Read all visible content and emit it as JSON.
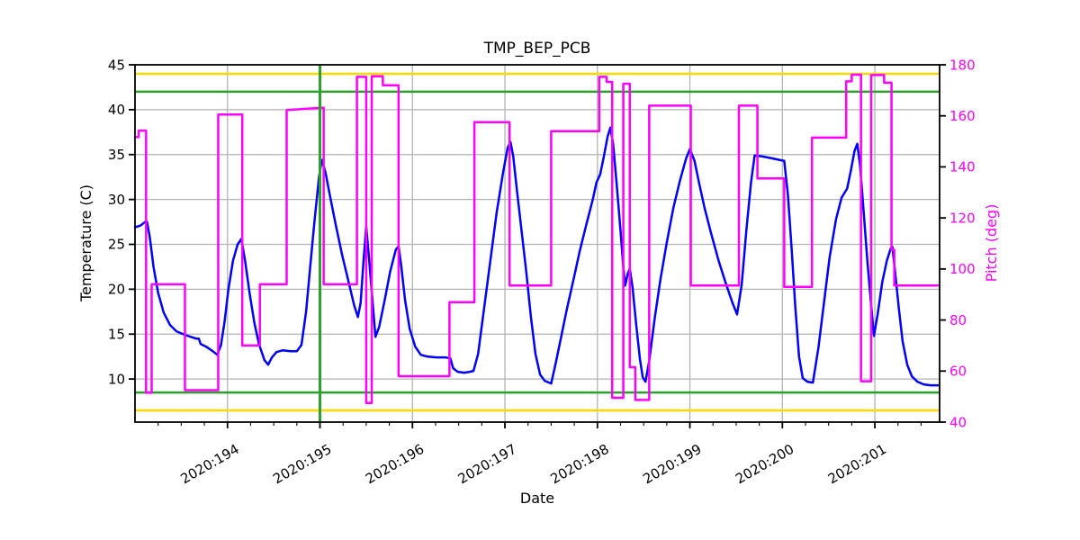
{
  "figure": {
    "background": "#ffffff"
  },
  "chart_data": {
    "type": "line",
    "title": "TMP_BEP_PCB",
    "xlabel": "Date",
    "x_axis": {
      "range": [
        193.0,
        201.7
      ],
      "tick_values": [
        194,
        195,
        196,
        197,
        198,
        199,
        200,
        201
      ],
      "tick_labels": [
        "2020:194",
        "2020:195",
        "2020:196",
        "2020:197",
        "2020:198",
        "2020:199",
        "2020:200",
        "2020:201"
      ],
      "minor_tick_step": 0.25,
      "tick_label_rotation_deg": -30,
      "tick_color": "#000000"
    },
    "left_axis": {
      "label": "Temperature (C)",
      "range": [
        5.2,
        45
      ],
      "ticks": [
        45,
        40,
        35,
        30,
        25,
        20,
        15,
        10
      ],
      "color": "#000000"
    },
    "right_axis": {
      "label": "Pitch (deg)",
      "range": [
        40,
        180
      ],
      "ticks": [
        180,
        160,
        140,
        120,
        100,
        80,
        60,
        40
      ],
      "color": "#ff00ff"
    },
    "grid": {
      "on": true,
      "color": "#b3b3b3"
    },
    "legend": {
      "shown": false
    },
    "limit_lines": [
      {
        "name": "yellow-high-limit",
        "axis": "left",
        "value": 44,
        "color": "#ffd700",
        "width": 2.5
      },
      {
        "name": "green-high-limit",
        "axis": "left",
        "value": 42,
        "color": "#2ca02c",
        "width": 2.5
      },
      {
        "name": "green-low-limit",
        "axis": "left",
        "value": 8.5,
        "color": "#2ca02c",
        "width": 2.5
      },
      {
        "name": "yellow-low-limit",
        "axis": "left",
        "value": 6.5,
        "color": "#ffd700",
        "width": 2.5
      }
    ],
    "vlines": [
      {
        "name": "green-vline",
        "x": 195.0,
        "color": "#2ca02c",
        "width": 3
      }
    ],
    "series": [
      {
        "name": "temperature",
        "axis": "left",
        "color": "#0000ff",
        "width": 2.5,
        "points": [
          [
            193.0,
            26.9
          ],
          [
            193.06,
            27.1
          ],
          [
            193.11,
            27.5
          ],
          [
            193.13,
            27.5
          ],
          [
            193.16,
            25.8
          ],
          [
            193.2,
            22.5
          ],
          [
            193.25,
            19.6
          ],
          [
            193.31,
            17.4
          ],
          [
            193.38,
            16.0
          ],
          [
            193.45,
            15.3
          ],
          [
            193.52,
            15.0
          ],
          [
            193.6,
            14.7
          ],
          [
            193.66,
            14.5
          ],
          [
            193.69,
            14.5
          ],
          [
            193.71,
            13.9
          ],
          [
            193.77,
            13.6
          ],
          [
            193.84,
            13.1
          ],
          [
            193.89,
            12.7
          ],
          [
            193.93,
            13.8
          ],
          [
            193.97,
            16.5
          ],
          [
            194.01,
            20.0
          ],
          [
            194.06,
            23.2
          ],
          [
            194.11,
            25.0
          ],
          [
            194.15,
            25.6
          ],
          [
            194.19,
            23.2
          ],
          [
            194.24,
            19.5
          ],
          [
            194.29,
            16.3
          ],
          [
            194.34,
            13.9
          ],
          [
            194.4,
            12.1
          ],
          [
            194.44,
            11.6
          ],
          [
            194.48,
            12.4
          ],
          [
            194.53,
            13.0
          ],
          [
            194.6,
            13.2
          ],
          [
            194.68,
            13.1
          ],
          [
            194.75,
            13.1
          ],
          [
            194.8,
            13.8
          ],
          [
            194.85,
            17.5
          ],
          [
            194.89,
            22.0
          ],
          [
            194.94,
            27.5
          ],
          [
            194.99,
            32.5
          ],
          [
            195.02,
            34.4
          ],
          [
            195.06,
            33.0
          ],
          [
            195.11,
            30.3
          ],
          [
            195.17,
            27.2
          ],
          [
            195.24,
            23.8
          ],
          [
            195.31,
            20.8
          ],
          [
            195.37,
            18.2
          ],
          [
            195.41,
            16.9
          ],
          [
            195.44,
            18.5
          ],
          [
            195.47,
            23.0
          ],
          [
            195.5,
            27.0
          ],
          [
            195.53,
            23.5
          ],
          [
            195.57,
            18.5
          ],
          [
            195.6,
            14.7
          ],
          [
            195.64,
            15.8
          ],
          [
            195.7,
            18.8
          ],
          [
            195.76,
            22.0
          ],
          [
            195.82,
            24.4
          ],
          [
            195.85,
            24.8
          ],
          [
            195.88,
            22.5
          ],
          [
            195.92,
            18.8
          ],
          [
            195.97,
            15.6
          ],
          [
            196.03,
            13.6
          ],
          [
            196.09,
            12.7
          ],
          [
            196.16,
            12.5
          ],
          [
            196.26,
            12.4
          ],
          [
            196.36,
            12.4
          ],
          [
            196.41,
            12.3
          ],
          [
            196.44,
            11.2
          ],
          [
            196.49,
            10.8
          ],
          [
            196.56,
            10.7
          ],
          [
            196.62,
            10.8
          ],
          [
            196.66,
            10.9
          ],
          [
            196.71,
            12.8
          ],
          [
            196.77,
            17.5
          ],
          [
            196.84,
            23.0
          ],
          [
            196.91,
            28.5
          ],
          [
            196.98,
            33.0
          ],
          [
            197.03,
            35.8
          ],
          [
            197.06,
            36.4
          ],
          [
            197.09,
            34.8
          ],
          [
            197.13,
            31.0
          ],
          [
            197.18,
            26.5
          ],
          [
            197.23,
            22.0
          ],
          [
            197.28,
            17.0
          ],
          [
            197.33,
            12.8
          ],
          [
            197.38,
            10.5
          ],
          [
            197.43,
            9.8
          ],
          [
            197.5,
            9.5
          ],
          [
            197.55,
            11.8
          ],
          [
            197.61,
            14.8
          ],
          [
            197.67,
            17.8
          ],
          [
            197.74,
            21.0
          ],
          [
            197.81,
            24.3
          ],
          [
            197.88,
            27.2
          ],
          [
            197.95,
            30.0
          ],
          [
            197.99,
            31.9
          ],
          [
            198.03,
            32.8
          ],
          [
            198.07,
            34.8
          ],
          [
            198.11,
            37.0
          ],
          [
            198.14,
            38.0
          ],
          [
            198.17,
            36.2
          ],
          [
            198.21,
            31.5
          ],
          [
            198.25,
            26.5
          ],
          [
            198.28,
            22.5
          ],
          [
            198.3,
            20.4
          ],
          [
            198.33,
            21.8
          ],
          [
            198.35,
            22.3
          ],
          [
            198.38,
            20.2
          ],
          [
            198.42,
            16.0
          ],
          [
            198.46,
            12.2
          ],
          [
            198.49,
            10.2
          ],
          [
            198.52,
            9.7
          ],
          [
            198.56,
            12.0
          ],
          [
            198.62,
            16.8
          ],
          [
            198.68,
            21.0
          ],
          [
            198.75,
            25.2
          ],
          [
            198.82,
            29.0
          ],
          [
            198.89,
            32.0
          ],
          [
            198.96,
            34.6
          ],
          [
            199.0,
            35.6
          ],
          [
            199.05,
            34.3
          ],
          [
            199.1,
            31.8
          ],
          [
            199.16,
            29.0
          ],
          [
            199.23,
            26.2
          ],
          [
            199.31,
            23.2
          ],
          [
            199.39,
            20.6
          ],
          [
            199.46,
            18.5
          ],
          [
            199.51,
            17.2
          ],
          [
            199.56,
            20.5
          ],
          [
            199.61,
            26.5
          ],
          [
            199.66,
            31.8
          ],
          [
            199.7,
            34.9
          ],
          [
            199.78,
            34.8
          ],
          [
            199.88,
            34.6
          ],
          [
            199.97,
            34.4
          ],
          [
            200.02,
            34.3
          ],
          [
            200.06,
            30.5
          ],
          [
            200.1,
            24.5
          ],
          [
            200.14,
            18.0
          ],
          [
            200.18,
            12.5
          ],
          [
            200.22,
            10.1
          ],
          [
            200.27,
            9.7
          ],
          [
            200.33,
            9.6
          ],
          [
            200.39,
            13.5
          ],
          [
            200.45,
            18.5
          ],
          [
            200.51,
            23.5
          ],
          [
            200.58,
            27.8
          ],
          [
            200.64,
            30.2
          ],
          [
            200.7,
            31.2
          ],
          [
            200.74,
            33.2
          ],
          [
            200.78,
            35.4
          ],
          [
            200.81,
            36.2
          ],
          [
            200.84,
            33.8
          ],
          [
            200.88,
            28.5
          ],
          [
            200.92,
            23.0
          ],
          [
            200.96,
            18.2
          ],
          [
            200.99,
            14.8
          ],
          [
            201.03,
            17.2
          ],
          [
            201.08,
            20.8
          ],
          [
            201.13,
            23.2
          ],
          [
            201.17,
            24.5
          ],
          [
            201.19,
            24.7
          ],
          [
            201.22,
            21.8
          ],
          [
            201.26,
            17.8
          ],
          [
            201.3,
            14.2
          ],
          [
            201.35,
            11.6
          ],
          [
            201.4,
            10.3
          ],
          [
            201.46,
            9.7
          ],
          [
            201.53,
            9.4
          ],
          [
            201.6,
            9.3
          ],
          [
            201.68,
            9.3
          ]
        ]
      },
      {
        "name": "pitch",
        "axis": "right",
        "color": "#ff00ff",
        "width": 2.5,
        "points": [
          [
            193.0,
            151.7
          ],
          [
            193.04,
            151.7
          ],
          [
            193.04,
            154.2
          ],
          [
            193.12,
            154.2
          ],
          [
            193.12,
            51.5
          ],
          [
            193.18,
            51.5
          ],
          [
            193.18,
            94.0
          ],
          [
            193.54,
            94.0
          ],
          [
            193.54,
            52.5
          ],
          [
            193.9,
            52.5
          ],
          [
            193.9,
            160.5
          ],
          [
            194.16,
            160.5
          ],
          [
            194.16,
            70.0
          ],
          [
            194.35,
            70.0
          ],
          [
            194.35,
            94.0
          ],
          [
            194.64,
            94.0
          ],
          [
            194.64,
            162.3
          ],
          [
            195.04,
            163.2
          ],
          [
            195.04,
            94.0
          ],
          [
            195.4,
            94.0
          ],
          [
            195.4,
            175.3
          ],
          [
            195.5,
            175.3
          ],
          [
            195.5,
            47.5
          ],
          [
            195.56,
            47.5
          ],
          [
            195.56,
            175.5
          ],
          [
            195.68,
            175.5
          ],
          [
            195.68,
            172.0
          ],
          [
            195.85,
            172.0
          ],
          [
            195.85,
            58.0
          ],
          [
            196.4,
            58.0
          ],
          [
            196.4,
            87.0
          ],
          [
            196.67,
            87.0
          ],
          [
            196.67,
            157.5
          ],
          [
            197.05,
            157.5
          ],
          [
            197.05,
            93.5
          ],
          [
            197.5,
            93.5
          ],
          [
            197.5,
            154.0
          ],
          [
            198.02,
            154.0
          ],
          [
            198.02,
            175.3
          ],
          [
            198.1,
            175.3
          ],
          [
            198.1,
            173.3
          ],
          [
            198.16,
            173.3
          ],
          [
            198.16,
            49.5
          ],
          [
            198.28,
            49.5
          ],
          [
            198.28,
            172.6
          ],
          [
            198.35,
            172.6
          ],
          [
            198.35,
            61.5
          ],
          [
            198.41,
            61.5
          ],
          [
            198.41,
            48.7
          ],
          [
            198.56,
            48.7
          ],
          [
            198.56,
            164.0
          ],
          [
            199.01,
            164.0
          ],
          [
            199.01,
            93.5
          ],
          [
            199.53,
            93.5
          ],
          [
            199.53,
            164.0
          ],
          [
            199.73,
            164.0
          ],
          [
            199.73,
            135.5
          ],
          [
            200.02,
            135.5
          ],
          [
            200.02,
            93.0
          ],
          [
            200.32,
            93.0
          ],
          [
            200.32,
            151.5
          ],
          [
            200.69,
            151.5
          ],
          [
            200.69,
            173.5
          ],
          [
            200.75,
            173.5
          ],
          [
            200.75,
            176.1
          ],
          [
            200.85,
            176.1
          ],
          [
            200.85,
            56.0
          ],
          [
            200.96,
            56.0
          ],
          [
            200.96,
            176.0
          ],
          [
            201.1,
            176.0
          ],
          [
            201.1,
            173.0
          ],
          [
            201.18,
            173.0
          ],
          [
            201.18,
            107.5
          ],
          [
            201.21,
            107.5
          ],
          [
            201.21,
            93.5
          ],
          [
            201.68,
            93.5
          ]
        ]
      }
    ]
  }
}
